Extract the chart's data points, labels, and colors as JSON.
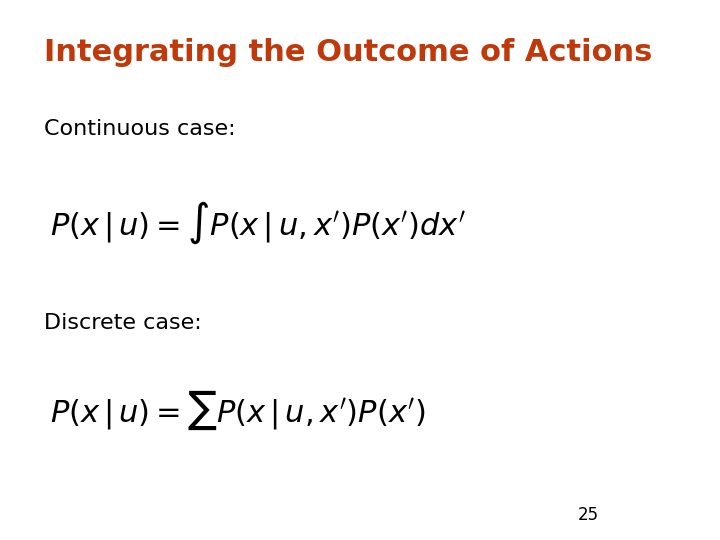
{
  "title": "Integrating the Outcome of Actions",
  "title_color": "#C0390B",
  "title_fontsize": 22,
  "title_bold": true,
  "continuous_label": "Continuous case:",
  "discrete_label": "Discrete case:",
  "label_fontsize": 16,
  "continuous_formula": "$P(x\\,|\\,u) = \\int P(x\\,|\\,u, x')P(x')dx'$",
  "discrete_formula": "$P(x\\,|\\,u) = \\sum P(x\\,|\\,u, x')P(x')$",
  "formula_fontsize": 22,
  "page_number": "25",
  "page_fontsize": 12,
  "background_color": "#ffffff",
  "text_color": "#000000"
}
